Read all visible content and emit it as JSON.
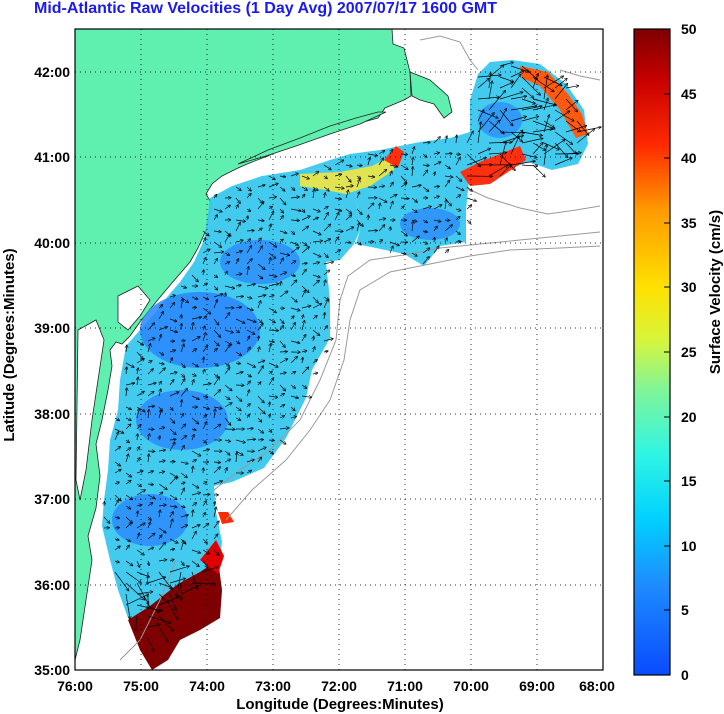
{
  "title": "Mid-Atlantic Raw Velocities (1 Day Avg) 2007/07/17 1600 GMT",
  "chart_data": {
    "type": "heatmap",
    "title": "Mid-Atlantic Raw Velocities (1 Day Avg) 2007/07/17 1600 GMT",
    "xlabel": "Longitude (Degrees:Minutes)",
    "ylabel": "Latitude (Degrees:Minutes)",
    "xlim": [
      -76,
      -68
    ],
    "ylim": [
      35,
      42.5
    ],
    "x_ticks": [
      "76:00",
      "75:00",
      "74:00",
      "73:00",
      "72:00",
      "71:00",
      "70:00",
      "69:00",
      "68:00"
    ],
    "y_ticks": [
      "35:00",
      "36:00",
      "37:00",
      "38:00",
      "39:00",
      "40:00",
      "41:00",
      "42:00"
    ],
    "grid": "dotted",
    "colorbar": {
      "label": "Surface Velocity (cm/s)",
      "range": [
        0,
        50
      ],
      "ticks": [
        "0",
        "5",
        "10",
        "15",
        "20",
        "25",
        "30",
        "35",
        "40",
        "45",
        "50"
      ],
      "colormap": "jet"
    },
    "colors": {
      "land": "#5fefae",
      "title": "#1a1aee",
      "contour": "#999999"
    }
  }
}
